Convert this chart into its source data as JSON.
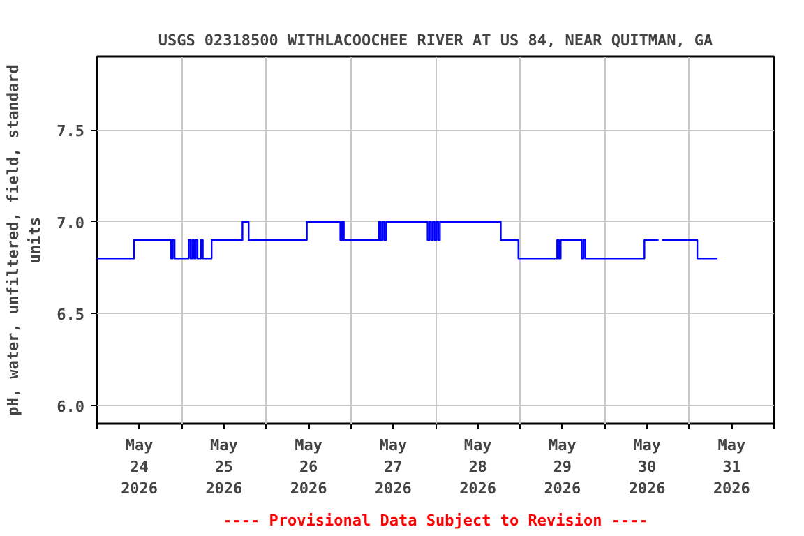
{
  "chart_data": {
    "type": "step",
    "title": "USGS 02318500 WITHLACOOCHEE RIVER AT US 84, NEAR QUITMAN, GA",
    "ylabel": "pH, water, unfiltered, field, standard units",
    "annotations": [
      "---- Provisional Data Subject to Revision ----"
    ],
    "x": [
      "2026-05-24T00:00",
      "2026-05-24T10:30",
      "2026-05-24T21:00",
      "2026-05-24T21:30",
      "2026-05-24T22:00",
      "2026-05-25T02:00",
      "2026-05-25T02:30",
      "2026-05-25T03:00",
      "2026-05-25T03:30",
      "2026-05-25T04:00",
      "2026-05-25T04:30",
      "2026-05-25T05:30",
      "2026-05-25T06:00",
      "2026-05-25T08:30",
      "2026-05-25T17:15",
      "2026-05-25T19:00",
      "2026-05-26T11:30",
      "2026-05-26T21:00",
      "2026-05-26T21:30",
      "2026-05-26T22:00",
      "2026-05-27T08:00",
      "2026-05-27T08:30",
      "2026-05-27T09:00",
      "2026-05-27T09:30",
      "2026-05-27T10:00",
      "2026-05-27T21:45",
      "2026-05-27T22:15",
      "2026-05-27T22:45",
      "2026-05-27T23:15",
      "2026-05-27T23:45",
      "2026-05-28T00:15",
      "2026-05-28T00:45",
      "2026-05-28T01:15",
      "2026-05-28T18:30",
      "2026-05-28T23:30",
      "2026-05-29T10:30",
      "2026-05-29T11:00",
      "2026-05-29T11:30",
      "2026-05-29T17:30",
      "2026-05-29T18:00",
      "2026-05-29T18:30",
      "2026-05-30T11:15",
      "2026-05-30T15:15",
      "2026-05-30T16:15",
      "2026-05-31T02:15",
      "2026-05-31T08:00"
    ],
    "series": [
      {
        "color": "#0000ff",
        "values": [
          6.8,
          6.9,
          6.8,
          6.9,
          6.8,
          6.9,
          6.8,
          6.9,
          6.8,
          6.9,
          6.8,
          6.9,
          6.8,
          6.9,
          7.0,
          6.9,
          7.0,
          6.9,
          7.0,
          6.9,
          7.0,
          6.9,
          7.0,
          6.9,
          7.0,
          6.9,
          7.0,
          6.9,
          7.0,
          6.9,
          7.0,
          6.9,
          7.0,
          6.9,
          6.8,
          6.9,
          6.8,
          6.9,
          6.8,
          6.9,
          6.8,
          6.9,
          null,
          6.9,
          6.8,
          6.8
        ]
      }
    ],
    "xlim": [
      "2026-05-24T00:00",
      "2026-06-01T00:00"
    ],
    "xticks": [
      {
        "value": "2026-05-24T00:00",
        "label": null
      },
      {
        "value": "2026-05-24T12:00",
        "label": "May\n24\n2026"
      },
      {
        "value": "2026-05-25T00:00",
        "label": null
      },
      {
        "value": "2026-05-25T12:00",
        "label": "May\n25\n2026"
      },
      {
        "value": "2026-05-26T00:00",
        "label": null
      },
      {
        "value": "2026-05-26T12:00",
        "label": "May\n26\n2026"
      },
      {
        "value": "2026-05-27T00:00",
        "label": null
      },
      {
        "value": "2026-05-27T12:00",
        "label": "May\n27\n2026"
      },
      {
        "value": "2026-05-28T00:00",
        "label": null
      },
      {
        "value": "2026-05-28T12:00",
        "label": "May\n28\n2026"
      },
      {
        "value": "2026-05-29T00:00",
        "label": null
      },
      {
        "value": "2026-05-29T12:00",
        "label": "May\n29\n2026"
      },
      {
        "value": "2026-05-30T00:00",
        "label": null
      },
      {
        "value": "2026-05-30T12:00",
        "label": "May\n30\n2026"
      },
      {
        "value": "2026-05-31T00:00",
        "label": null
      },
      {
        "value": "2026-05-31T12:00",
        "label": "May\n31\n2026"
      },
      {
        "value": "2026-06-01T00:00",
        "label": null
      }
    ],
    "ylim": [
      5.9,
      7.9
    ],
    "yticks": [
      {
        "value": 6.0,
        "label": "6.0"
      },
      {
        "value": 6.5,
        "label": "6.5"
      },
      {
        "value": 7.0,
        "label": "7.0"
      },
      {
        "value": 7.5,
        "label": "7.5"
      }
    ],
    "grid": true,
    "line_style": "solid",
    "marker": "none"
  }
}
